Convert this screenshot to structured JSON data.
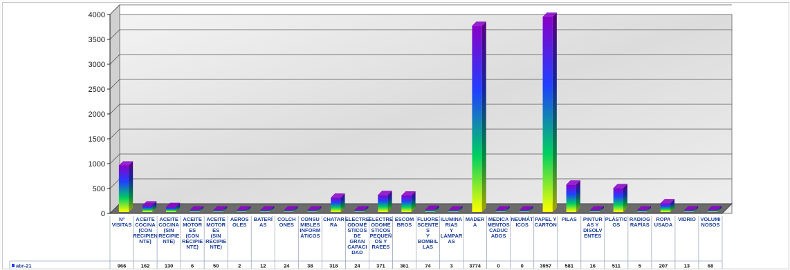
{
  "chart_data": {
    "type": "bar",
    "title": "",
    "xlabel": "",
    "ylabel": "",
    "ylim": [
      0,
      4000
    ],
    "yticks": [
      0,
      500,
      1000,
      1500,
      2000,
      2500,
      3000,
      3500,
      4000
    ],
    "grid": true,
    "series": [
      {
        "name": "abr-21",
        "values": [
          966,
          162,
          130,
          6,
          50,
          2,
          12,
          24,
          38,
          318,
          24,
          371,
          361,
          74,
          3,
          3774,
          0,
          0,
          3957,
          581,
          16,
          511,
          5,
          207,
          13,
          68
        ]
      }
    ],
    "categories": [
      [
        "Nº",
        "VISITAS"
      ],
      [
        "ACEITE",
        "COCINA",
        "(CON",
        "RECIPIEN",
        "NTE)"
      ],
      [
        "ACEITE",
        "COCINA",
        "(SIN",
        "RECIPIE",
        "NTE)"
      ],
      [
        "ACEITE",
        "MOTOR",
        "ES",
        "(CON",
        "RECIPIE",
        "NTE)"
      ],
      [
        "ACEITE",
        "MOTOR",
        "ES",
        "(SIN",
        "RECIPIE",
        "NTE)"
      ],
      [
        "AEROS",
        "OLES"
      ],
      [
        "BATERÍ",
        "AS"
      ],
      [
        "COLCH",
        "ONES"
      ],
      [
        "CONSU",
        "MIBLES",
        "INFORM",
        "ÁTICOS"
      ],
      [
        "CHATAR",
        "RA"
      ],
      [
        "ELECTRE",
        "ODOMÉ",
        "STICOS",
        "DE",
        "GRAN",
        "CAPACI",
        "DAD"
      ],
      [
        "ELECTRE",
        "ODOMÉ",
        "STICOS",
        "PEQUEÑ",
        "OS Y",
        "RAEES"
      ],
      [
        "ESCOM",
        "BROS"
      ],
      [
        "FLUORE",
        "SCENTE",
        "S",
        "Y",
        "BOMBIL",
        "LAS"
      ],
      [
        "ILUMINA",
        "RIAS",
        "Y",
        "LÁMPAR",
        "AS"
      ],
      [
        "MADER",
        "A"
      ],
      [
        "MEDICA",
        "MENTOS",
        "CADUC",
        "ADOS"
      ],
      [
        "NEUMÁT",
        "ICOS"
      ],
      [
        "PAPEL Y",
        "CARTÓN"
      ],
      [
        "PILAS"
      ],
      [
        "PINTUR",
        "AS Y",
        "DISOLV",
        "ENTES"
      ],
      [
        "PLÁSTIC",
        "OS"
      ],
      [
        "RADIOG",
        "RAFÍAS"
      ],
      [
        "ROPA",
        "USADA"
      ],
      [
        "VIDRIO"
      ],
      [
        "VOLUMI",
        "NOSOS"
      ]
    ],
    "table_row_label": "abr-21",
    "colors": {
      "gradient": [
        "#8a00c8",
        "#2040ff",
        "#00d060",
        "#ffff00"
      ],
      "floor": "#6b6b6b",
      "category_text": "#1c3f9a",
      "grid": "#555555"
    }
  }
}
